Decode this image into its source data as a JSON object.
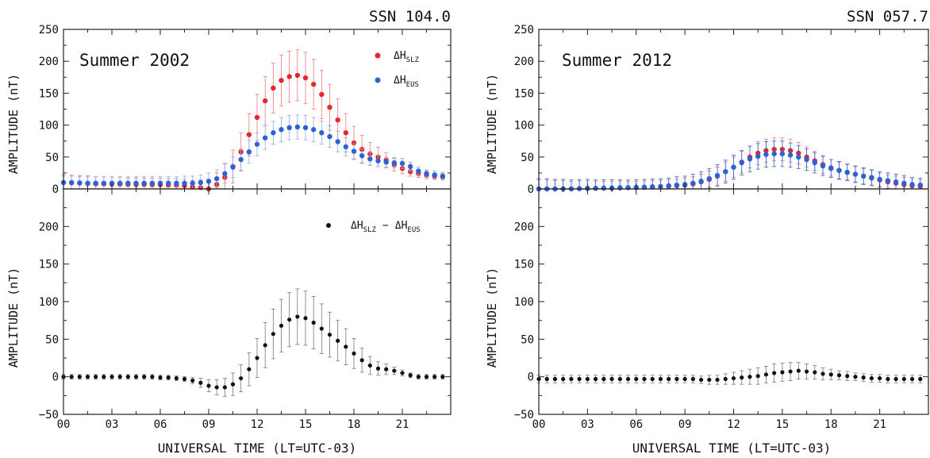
{
  "chart_data": [
    {
      "type": "scatter",
      "panel": "top-left",
      "corner_label": "SSN 104.0",
      "annotation": "Summer 2002",
      "ylabel": "AMPLITUDE (nT)",
      "ylim": [
        0,
        250
      ],
      "ytick_labels": [
        "0",
        "50",
        "100",
        "150",
        "200",
        "250"
      ],
      "xlim": [
        0,
        24
      ],
      "legend_placement": "top-right",
      "series": [
        {
          "name": "ΔH_SLZ",
          "legend_main": "ΔH",
          "legend_sub": "SLZ",
          "color": "#e8252a",
          "errcolor": "#f07878",
          "x": [
            0,
            0.5,
            1,
            1.5,
            2,
            2.5,
            3,
            3.5,
            4,
            4.5,
            5,
            5.5,
            6,
            6.5,
            7,
            7.5,
            8,
            8.5,
            9,
            9.5,
            10,
            10.5,
            11,
            11.5,
            12,
            12.5,
            13,
            13.5,
            14,
            14.5,
            15,
            15.5,
            16,
            16.5,
            17,
            17.5,
            18,
            18.5,
            19,
            19.5,
            20,
            20.5,
            21,
            21.5,
            22,
            22.5,
            23,
            23.5
          ],
          "y": [
            10,
            9.5,
            9,
            8.5,
            8,
            8,
            7.5,
            7.5,
            7,
            7,
            7,
            6.5,
            6.5,
            6,
            6,
            5,
            3,
            2,
            0,
            7,
            18,
            35,
            58,
            85,
            112,
            138,
            158,
            170,
            176,
            178,
            174,
            164,
            148,
            128,
            108,
            88,
            72,
            62,
            55,
            50,
            45,
            38,
            32,
            27,
            24,
            22,
            20,
            19
          ],
          "err": [
            12,
            12,
            12,
            12,
            11,
            11,
            11,
            11,
            10,
            10,
            10,
            10,
            10,
            10,
            10,
            10,
            10,
            12,
            15,
            18,
            22,
            26,
            30,
            33,
            36,
            38,
            39,
            40,
            40,
            40,
            40,
            39,
            38,
            36,
            33,
            30,
            26,
            22,
            18,
            15,
            12,
            10,
            8,
            7,
            6,
            6,
            5,
            5
          ]
        },
        {
          "name": "ΔH_EUS",
          "legend_main": "ΔH",
          "legend_sub": "EUS",
          "color": "#2a63d8",
          "errcolor": "#8aa8ee",
          "x": [
            0,
            0.5,
            1,
            1.5,
            2,
            2.5,
            3,
            3.5,
            4,
            4.5,
            5,
            5.5,
            6,
            6.5,
            7,
            7.5,
            8,
            8.5,
            9,
            9.5,
            10,
            10.5,
            11,
            11.5,
            12,
            12.5,
            13,
            13.5,
            14,
            14.5,
            15,
            15.5,
            16,
            16.5,
            17,
            17.5,
            18,
            18.5,
            19,
            19.5,
            20,
            20.5,
            21,
            21.5,
            22,
            22.5,
            23,
            23.5
          ],
          "y": [
            10,
            10,
            9.5,
            9,
            9,
            9,
            9,
            9,
            9,
            9,
            9,
            9,
            9,
            9,
            9,
            9,
            9,
            10,
            12,
            16,
            24,
            34,
            46,
            58,
            70,
            80,
            88,
            93,
            96,
            97,
            96,
            93,
            88,
            82,
            74,
            66,
            59,
            52,
            47,
            44,
            42,
            41,
            40,
            35,
            28,
            24,
            22,
            20
          ],
          "err": [
            10,
            10,
            10,
            10,
            10,
            10,
            10,
            10,
            10,
            10,
            10,
            10,
            10,
            10,
            10,
            11,
            11,
            12,
            13,
            14,
            15,
            16,
            17,
            18,
            18,
            18,
            18,
            19,
            19,
            19,
            19,
            19,
            18,
            17,
            16,
            14,
            12,
            11,
            10,
            9,
            8,
            8,
            8,
            7,
            6,
            6,
            6,
            6
          ]
        }
      ]
    },
    {
      "type": "scatter",
      "panel": "bottom-left",
      "ylabel": "AMPLITUDE (nT)",
      "xlabel": "UNIVERSAL TIME (LT=UTC-03)",
      "ylim": [
        -50,
        250
      ],
      "ytick_labels": [
        "−50",
        "0",
        "50",
        "100",
        "150",
        "200"
      ],
      "xlim": [
        0,
        24
      ],
      "xtick_labels": [
        "00",
        "03",
        "06",
        "09",
        "12",
        "15",
        "18",
        "21"
      ],
      "legend_placement": "top-right",
      "series": [
        {
          "name": "ΔH_SLZ − ΔH_EUS",
          "color": "#111111",
          "errcolor": "#777777",
          "x": [
            0,
            0.5,
            1,
            1.5,
            2,
            2.5,
            3,
            3.5,
            4,
            4.5,
            5,
            5.5,
            6,
            6.5,
            7,
            7.5,
            8,
            8.5,
            9,
            9.5,
            10,
            10.5,
            11,
            11.5,
            12,
            12.5,
            13,
            13.5,
            14,
            14.5,
            15,
            15.5,
            16,
            16.5,
            17,
            17.5,
            18,
            18.5,
            19,
            19.5,
            20,
            20.5,
            21,
            21.5,
            22,
            22.5,
            23,
            23.5
          ],
          "y": [
            0,
            0,
            0,
            0,
            0,
            0,
            0,
            0,
            0,
            0,
            0,
            0,
            -1,
            -1,
            -2,
            -3,
            -5,
            -8,
            -12,
            -14,
            -14,
            -10,
            -2,
            10,
            25,
            42,
            57,
            68,
            76,
            80,
            78,
            72,
            64,
            56,
            48,
            40,
            31,
            22,
            15,
            11,
            10,
            8,
            5,
            2,
            0,
            0,
            0,
            0
          ],
          "err": [
            3,
            3,
            3,
            3,
            3,
            3,
            3,
            3,
            3,
            3,
            3,
            3,
            3,
            3,
            3,
            3,
            4,
            6,
            8,
            10,
            12,
            15,
            18,
            22,
            26,
            30,
            33,
            35,
            36,
            37,
            36,
            35,
            33,
            30,
            27,
            24,
            20,
            16,
            12,
            9,
            7,
            5,
            4,
            3,
            3,
            3,
            3,
            3
          ]
        }
      ]
    },
    {
      "type": "scatter",
      "panel": "top-right",
      "corner_label": "SSN 057.7",
      "annotation": "Summer 2012",
      "ylabel": "AMPLITUDE (nT)",
      "ylim": [
        0,
        250
      ],
      "ytick_labels": [
        "0",
        "50",
        "100",
        "150",
        "200",
        "250"
      ],
      "xlim": [
        0,
        24
      ],
      "series": [
        {
          "name": "ΔH_SLZ",
          "color": "#e8252a",
          "errcolor": "#f07878",
          "x": [
            0,
            0.5,
            1,
            1.5,
            2,
            2.5,
            3,
            3.5,
            4,
            4.5,
            5,
            5.5,
            6,
            6.5,
            7,
            7.5,
            8,
            8.5,
            9,
            9.5,
            10,
            10.5,
            11,
            11.5,
            12,
            12.5,
            13,
            13.5,
            14,
            14.5,
            15,
            15.5,
            16,
            16.5,
            17,
            17.5,
            18,
            18.5,
            19,
            19.5,
            20,
            20.5,
            21,
            21.5,
            22,
            22.5,
            23,
            23.5
          ],
          "y": [
            0,
            0,
            0,
            0,
            0,
            0.5,
            0.5,
            1,
            1,
            1,
            1.5,
            2,
            2,
            2.5,
            3,
            3.5,
            4,
            5,
            6,
            8,
            11,
            15,
            20,
            27,
            34,
            42,
            50,
            56,
            60,
            62,
            62,
            60,
            56,
            50,
            44,
            38,
            33,
            29,
            26,
            23,
            20,
            17,
            14,
            11,
            9,
            7,
            5,
            4
          ],
          "err": [
            14,
            14,
            13,
            13,
            12,
            12,
            12,
            11,
            11,
            11,
            11,
            10,
            10,
            10,
            10,
            10,
            10,
            10,
            11,
            11,
            12,
            13,
            14,
            15,
            16,
            17,
            17,
            18,
            18,
            18,
            18,
            18,
            17,
            16,
            15,
            14,
            13,
            13,
            12,
            12,
            12,
            12,
            11,
            11,
            11,
            11,
            10,
            10
          ]
        },
        {
          "name": "ΔH_EUS",
          "color": "#2a63d8",
          "errcolor": "#2a63d8",
          "x": [
            0,
            0.5,
            1,
            1.5,
            2,
            2.5,
            3,
            3.5,
            4,
            4.5,
            5,
            5.5,
            6,
            6.5,
            7,
            7.5,
            8,
            8.5,
            9,
            9.5,
            10,
            10.5,
            11,
            11.5,
            12,
            12.5,
            13,
            13.5,
            14,
            14.5,
            15,
            15.5,
            16,
            16.5,
            17,
            17.5,
            18,
            18.5,
            19,
            19.5,
            20,
            20.5,
            21,
            21.5,
            22,
            22.5,
            23,
            23.5
          ],
          "y": [
            0,
            0,
            0,
            0,
            0,
            0.5,
            1,
            1,
            1.5,
            1.5,
            2,
            2,
            2.5,
            3,
            3.5,
            4,
            5,
            6,
            7,
            9,
            12,
            16,
            21,
            27,
            34,
            41,
            47,
            51,
            54,
            55,
            55,
            53,
            50,
            46,
            41,
            36,
            32,
            29,
            26,
            23,
            20,
            18,
            15,
            13,
            11,
            9,
            7,
            6
          ],
          "err": [
            16,
            16,
            15,
            15,
            14,
            14,
            14,
            13,
            13,
            13,
            12,
            12,
            12,
            12,
            12,
            12,
            12,
            13,
            13,
            14,
            15,
            16,
            17,
            18,
            19,
            19,
            20,
            20,
            20,
            20,
            20,
            19,
            18,
            17,
            16,
            15,
            14,
            14,
            13,
            13,
            13,
            12,
            12,
            12,
            12,
            12,
            11,
            11
          ]
        }
      ]
    },
    {
      "type": "scatter",
      "panel": "bottom-right",
      "ylabel": "AMPLITUDE (nT)",
      "xlabel": "UNIVERSAL TIME (LT=UTC-03)",
      "ylim": [
        -50,
        250
      ],
      "ytick_labels": [
        "−50",
        "0",
        "50",
        "100",
        "150",
        "200"
      ],
      "xlim": [
        0,
        24
      ],
      "xtick_labels": [
        "00",
        "03",
        "06",
        "09",
        "12",
        "15",
        "18",
        "21"
      ],
      "series": [
        {
          "name": "ΔH_SLZ − ΔH_EUS",
          "color": "#111111",
          "errcolor": "#777777",
          "x": [
            0,
            0.5,
            1,
            1.5,
            2,
            2.5,
            3,
            3.5,
            4,
            4.5,
            5,
            5.5,
            6,
            6.5,
            7,
            7.5,
            8,
            8.5,
            9,
            9.5,
            10,
            10.5,
            11,
            11.5,
            12,
            12.5,
            13,
            13.5,
            14,
            14.5,
            15,
            15.5,
            16,
            16.5,
            17,
            17.5,
            18,
            18.5,
            19,
            19.5,
            20,
            20.5,
            21,
            21.5,
            22,
            22.5,
            23,
            23.5
          ],
          "y": [
            -3,
            -3,
            -3,
            -3,
            -3,
            -3,
            -3,
            -3,
            -3,
            -3,
            -3,
            -3,
            -3,
            -3,
            -3,
            -3,
            -3,
            -3,
            -3,
            -3,
            -4,
            -4,
            -4,
            -3,
            -2,
            -1,
            0,
            1,
            3,
            5,
            6,
            7,
            8,
            7,
            6,
            4,
            3,
            2,
            1,
            0,
            -1,
            -2,
            -2,
            -3,
            -3,
            -3,
            -3,
            -3
          ],
          "err": [
            5,
            5,
            5,
            5,
            5,
            5,
            5,
            5,
            5,
            5,
            5,
            5,
            5,
            5,
            5,
            5,
            5,
            5,
            5,
            5,
            5,
            6,
            6,
            7,
            8,
            9,
            10,
            11,
            11,
            12,
            12,
            12,
            11,
            10,
            9,
            8,
            7,
            6,
            6,
            5,
            5,
            5,
            5,
            5,
            5,
            5,
            5,
            5
          ]
        }
      ]
    }
  ],
  "legend_bottom_left": {
    "diff_a_main": "ΔH",
    "diff_a_sub": "SLZ",
    "diff_sep": "−",
    "diff_b_main": "ΔH",
    "diff_b_sub": "EUS"
  }
}
